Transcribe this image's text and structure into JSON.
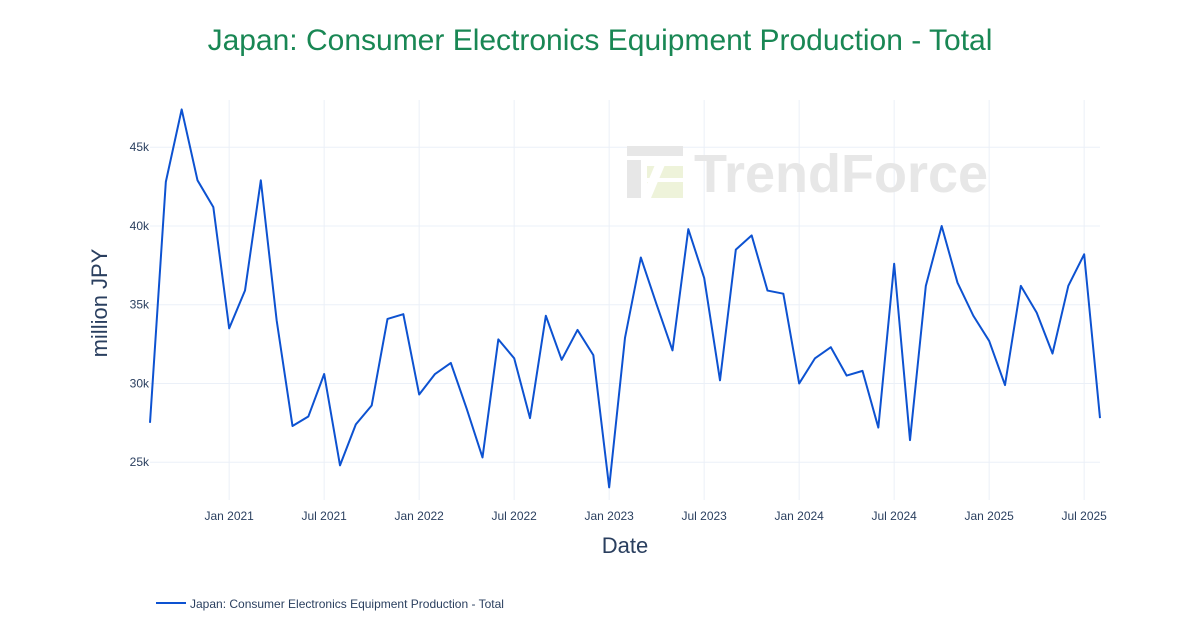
{
  "chart_data": {
    "type": "line",
    "title": "Japan: Consumer Electronics Equipment Production - Total",
    "xlabel": "Date",
    "ylabel": "million JPY",
    "x_tick_labels": [
      "Jan 2021",
      "Jul 2021",
      "Jan 2022",
      "Jul 2022",
      "Jan 2023",
      "Jul 2023",
      "Jan 2024",
      "Jul 2024",
      "Jan 2025",
      "Jul 2025"
    ],
    "y_tick_labels": [
      "25k",
      "30k",
      "35k",
      "40k",
      "45k"
    ],
    "y_ticks": [
      25000,
      30000,
      35000,
      40000,
      45000
    ],
    "xlim": [
      "2020-08",
      "2025-08"
    ],
    "ylim": [
      22600,
      48000
    ],
    "grid": true,
    "legend_position": "bottom-left",
    "watermark": "TrendForce",
    "series": [
      {
        "name": "Japan: Consumer Electronics Equipment Production - Total",
        "color": "#0d52d1",
        "x": [
          "2020-08",
          "2020-09",
          "2020-10",
          "2020-11",
          "2020-12",
          "2021-01",
          "2021-02",
          "2021-03",
          "2021-04",
          "2021-05",
          "2021-06",
          "2021-07",
          "2021-08",
          "2021-09",
          "2021-10",
          "2021-11",
          "2021-12",
          "2022-01",
          "2022-02",
          "2022-03",
          "2022-04",
          "2022-05",
          "2022-06",
          "2022-07",
          "2022-08",
          "2022-09",
          "2022-10",
          "2022-11",
          "2022-12",
          "2023-01",
          "2023-02",
          "2023-03",
          "2023-04",
          "2023-05",
          "2023-06",
          "2023-07",
          "2023-08",
          "2023-09",
          "2023-10",
          "2023-11",
          "2023-12",
          "2024-01",
          "2024-02",
          "2024-03",
          "2024-04",
          "2024-05",
          "2024-06",
          "2024-07",
          "2024-08",
          "2024-09",
          "2024-10",
          "2024-11",
          "2024-12",
          "2025-01",
          "2025-02",
          "2025-03",
          "2025-04",
          "2025-05",
          "2025-06",
          "2025-07",
          "2025-08"
        ],
        "y": [
          27500,
          42800,
          47400,
          42900,
          41200,
          33500,
          35900,
          42900,
          34000,
          27300,
          27900,
          30600,
          24800,
          27400,
          28600,
          34100,
          34400,
          29300,
          30600,
          31300,
          28400,
          25300,
          32800,
          31600,
          27800,
          34300,
          31500,
          33400,
          31800,
          23400,
          32900,
          38000,
          35000,
          32100,
          39800,
          36700,
          30200,
          38500,
          39400,
          35900,
          35700,
          30000,
          31600,
          32300,
          30500,
          30800,
          27200,
          37600,
          26400,
          36200,
          40000,
          36400,
          34300,
          32700,
          29900,
          36200,
          34500,
          31900,
          36200,
          38200,
          27800
        ]
      }
    ]
  },
  "colors": {
    "title": "#198754",
    "line": "#0d52d1",
    "grid": "#ebf0f8",
    "watermark_gray": "#e7e7e7",
    "watermark_green": "#eef3da"
  }
}
